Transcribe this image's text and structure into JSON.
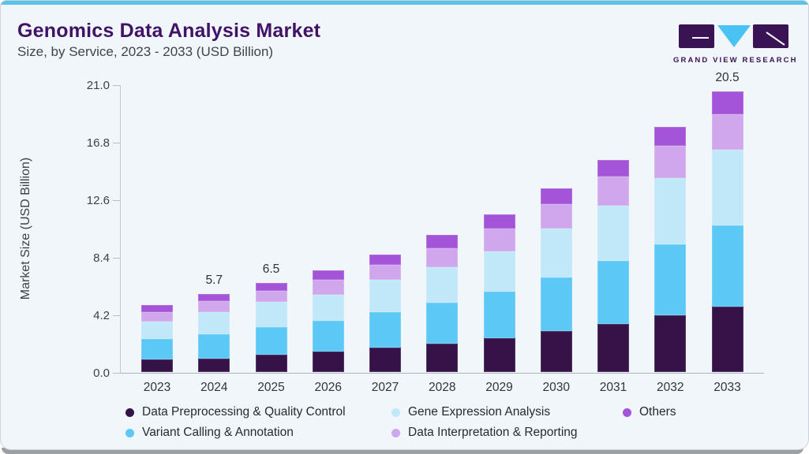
{
  "header": {
    "title": "Genomics Data Analysis Market",
    "subtitle": "Size, by Service, 2023 - 2033 (USD Billion)",
    "logo_text": "GRAND VIEW RESEARCH"
  },
  "chart_data": {
    "type": "bar",
    "stacked": true,
    "title": "Genomics Data Analysis Market",
    "subtitle": "Size, by Service, 2023 - 2033 (USD Billion)",
    "xlabel": "",
    "ylabel": "Market Size (USD Billion)",
    "ylim": [
      0,
      21
    ],
    "ytick_labels": [
      "0.0",
      "4.2",
      "8.4",
      "12.6",
      "16.8",
      "21.0"
    ],
    "grid": false,
    "legend_position": "bottom",
    "categories": [
      "2023",
      "2024",
      "2025",
      "2026",
      "2027",
      "2028",
      "2029",
      "2030",
      "2031",
      "2032",
      "2033"
    ],
    "series": [
      {
        "name": "Data Preprocessing & Quality Control",
        "color": "#351349",
        "values": [
          0.9,
          0.96,
          1.24,
          1.5,
          1.77,
          2.06,
          2.45,
          2.97,
          3.52,
          4.15,
          4.77
        ]
      },
      {
        "name": "Variant Calling & Annotation",
        "color": "#5cc8f5",
        "values": [
          1.5,
          1.82,
          2.06,
          2.24,
          2.63,
          3.02,
          3.43,
          3.95,
          4.6,
          5.2,
          5.96
        ]
      },
      {
        "name": "Gene Expression Analysis",
        "color": "#c0e8f9",
        "values": [
          1.26,
          1.57,
          1.85,
          1.88,
          2.35,
          2.57,
          2.91,
          3.53,
          4.0,
          4.79,
          5.47
        ]
      },
      {
        "name": "Data Interpretation & Reporting",
        "color": "#d0a7ec",
        "values": [
          0.7,
          0.81,
          0.79,
          1.09,
          1.09,
          1.38,
          1.68,
          1.79,
          2.16,
          2.37,
          2.64
        ]
      },
      {
        "name": "Others",
        "color": "#a454d8",
        "values": [
          0.54,
          0.54,
          0.56,
          0.69,
          0.76,
          0.97,
          1.03,
          1.16,
          1.22,
          1.39,
          1.66
        ]
      }
    ],
    "totals": [
      4.9,
      5.7,
      6.5,
      7.4,
      8.6,
      10.0,
      11.5,
      13.4,
      15.5,
      17.9,
      20.5
    ],
    "bar_value_labels": [
      "",
      "5.7",
      "6.5",
      "",
      "",
      "",
      "",
      "",
      "",
      "",
      "20.5"
    ]
  },
  "colors": {
    "accent_strip": "#5bc2ec",
    "card_background": "#f1f6fa",
    "title_text": "#411366",
    "logo_purple": "#3a1354",
    "logo_blue": "#49c3f1"
  }
}
